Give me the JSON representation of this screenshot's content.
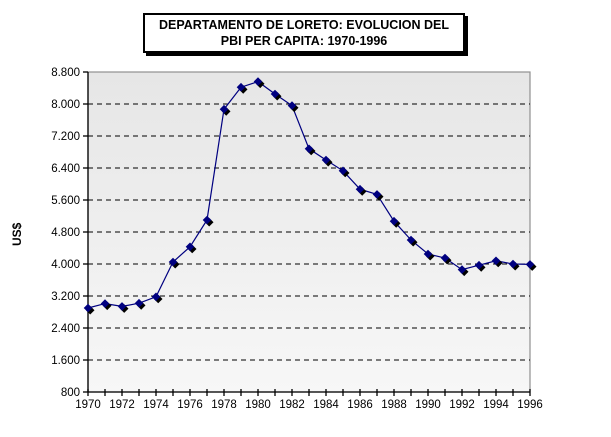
{
  "header": {
    "title_line1": "DEPARTAMENTO DE LORETO: EVOLUCION DEL",
    "title_line2": "PBI PER CAPITA: 1970-1996"
  },
  "chart_data": {
    "type": "line",
    "title": "DEPARTAMENTO DE LORETO: EVOLUCION DEL PBI PER CAPITA: 1970-1996",
    "xlabel": "",
    "ylabel": "US$",
    "ylim": [
      800,
      8800
    ],
    "grid": "horizontal-dashed-black",
    "legend": "none",
    "plot_background": "gray gradient",
    "series": [
      {
        "name": "PBI per capita (US$)",
        "color": "#000080",
        "marker": "diamond-with-black-shadow",
        "x": [
          1970,
          1971,
          1972,
          1973,
          1974,
          1975,
          1976,
          1977,
          1978,
          1979,
          1980,
          1981,
          1982,
          1983,
          1984,
          1985,
          1986,
          1987,
          1988,
          1989,
          1990,
          1991,
          1992,
          1993,
          1994,
          1995,
          1996
        ],
        "values": [
          2900,
          3010,
          2940,
          3020,
          3180,
          4050,
          4430,
          5100,
          7870,
          8420,
          8560,
          8250,
          7960,
          6880,
          6600,
          6330,
          5870,
          5740,
          5070,
          4600,
          4250,
          4150,
          3860,
          3970,
          4080,
          4000,
          3990
        ]
      }
    ],
    "y_tick_values": [
      800,
      1600,
      2400,
      3200,
      4000,
      4800,
      5600,
      6400,
      7200,
      8000,
      8800
    ],
    "y_tick_labels": [
      "800",
      "1.600",
      "2.400",
      "3.200",
      "4.000",
      "4.800",
      "5.600",
      "6.400",
      "7.200",
      "8.000",
      "8.800"
    ],
    "x_tick_labels": [
      "1970",
      "1972",
      "1974",
      "1976",
      "1978",
      "1980",
      "1982",
      "1984",
      "1986",
      "1988",
      "1990",
      "1992",
      "1994",
      "1996"
    ],
    "colors": {
      "series": "#000080",
      "marker_shadow": "#000000",
      "gridline": "#000000",
      "axis": "#000000",
      "plot_border": "#909090",
      "plot_fill_top": "#e6e6e6",
      "plot_fill_bottom": "#f7f7f7",
      "background": "#ffffff"
    }
  }
}
